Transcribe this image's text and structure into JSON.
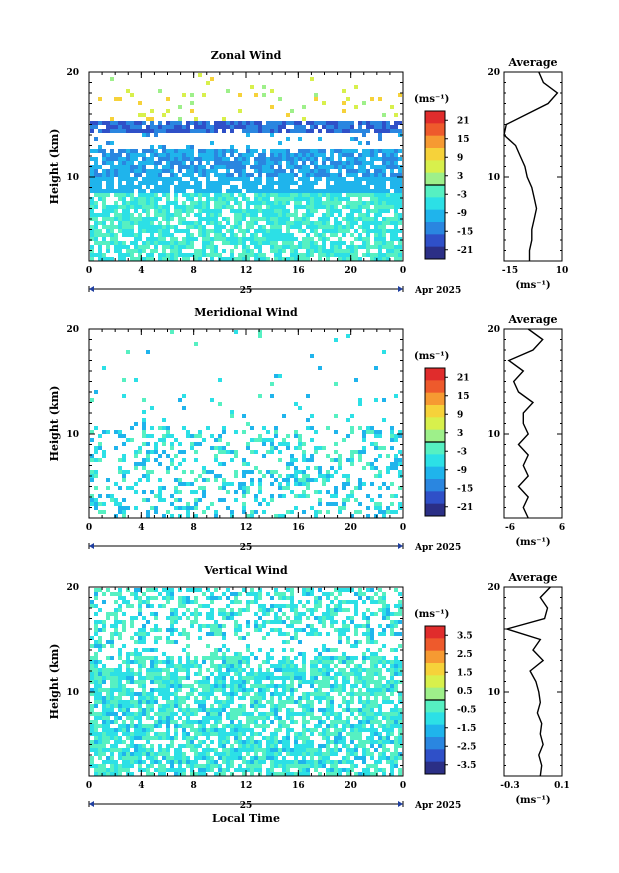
{
  "page": {
    "date_label": "Apr 2025",
    "xlabel": "Local Time"
  },
  "colors": {
    "zero_line": "#000000",
    "frame": "#000000",
    "colormap": [
      "#2b2f86",
      "#2f50c8",
      "#2a86e0",
      "#1fb4ec",
      "#2ce0e6",
      "#56f0c2",
      "#9ef08a",
      "#d8f04c",
      "#f6d23a",
      "#f69a32",
      "#ee5a2c",
      "#e02c2c"
    ]
  },
  "chart_data": [
    {
      "type": "heatmap",
      "title": "Zonal Wind",
      "ylabel": "Height (km)",
      "ylim": [
        2,
        20
      ],
      "xlim": [
        0,
        24
      ],
      "x_ticks": [
        "0",
        "4",
        "8",
        "12",
        "16",
        "20",
        "0"
      ],
      "y_ticks": [
        "20",
        "10"
      ],
      "day_label": "25",
      "colorbar": {
        "unit": "(ms⁻¹)",
        "range": [
          -24,
          24
        ],
        "ticks": [
          "21",
          "15",
          "9",
          "3",
          "-3",
          "-9",
          "-15",
          "-21"
        ]
      },
      "profile": {
        "title": "Average",
        "xlabel": "(ms⁻¹)",
        "xlim": [
          -15,
          10
        ],
        "x_ticks": [
          "-15",
          "10"
        ],
        "y_ticks": [
          "20",
          "10"
        ],
        "heights": [
          2,
          3,
          4,
          5,
          6,
          7,
          8,
          9,
          10,
          11,
          12,
          13,
          14,
          15,
          16,
          17,
          18,
          19,
          20
        ],
        "values": [
          -4,
          -4,
          -3,
          -3,
          -2,
          -1,
          -2,
          -3,
          -5,
          -6,
          -8,
          -10,
          -15,
          -14,
          -5,
          4,
          8,
          2,
          0
        ]
      }
    },
    {
      "type": "heatmap",
      "title": "Meridional Wind",
      "ylabel": "Height (km)",
      "ylim": [
        2,
        20
      ],
      "xlim": [
        0,
        24
      ],
      "x_ticks": [
        "0",
        "4",
        "8",
        "12",
        "16",
        "20",
        "0"
      ],
      "y_ticks": [
        "20",
        "10"
      ],
      "day_label": "25",
      "colorbar": {
        "unit": "(ms⁻¹)",
        "range": [
          -24,
          24
        ],
        "ticks": [
          "21",
          "15",
          "9",
          "3",
          "-3",
          "-9",
          "-15",
          "-21"
        ]
      },
      "profile": {
        "title": "Average",
        "xlabel": "(ms⁻¹)",
        "xlim": [
          -6,
          6
        ],
        "x_ticks": [
          "-6",
          "6"
        ],
        "y_ticks": [
          "20",
          "10"
        ],
        "heights": [
          2,
          3,
          4,
          5,
          6,
          7,
          8,
          9,
          10,
          11,
          12,
          13,
          14,
          15,
          16,
          17,
          18,
          19,
          20
        ],
        "values": [
          -1,
          -2,
          -1,
          -3,
          -1,
          -2,
          -1,
          -3,
          -1,
          -2,
          -2,
          0,
          -3,
          -4,
          -2,
          -5,
          0,
          2,
          -1
        ]
      }
    },
    {
      "type": "heatmap",
      "title": "Vertical Wind",
      "ylabel": "Height (km)",
      "ylim": [
        2,
        20
      ],
      "xlim": [
        0,
        24
      ],
      "x_ticks": [
        "0",
        "4",
        "8",
        "12",
        "16",
        "20",
        "0"
      ],
      "y_ticks": [
        "20",
        "10"
      ],
      "day_label": "25",
      "colorbar": {
        "unit": "(ms⁻¹)",
        "range": [
          -4,
          4
        ],
        "ticks": [
          "3.5",
          "2.5",
          "1.5",
          "0.5",
          "-0.5",
          "-1.5",
          "-2.5",
          "-3.5"
        ]
      },
      "profile": {
        "title": "Average",
        "xlabel": "(ms⁻¹)",
        "xlim": [
          -0.3,
          0.1
        ],
        "x_ticks": [
          "-0.3",
          "0.1"
        ],
        "y_ticks": [
          "20",
          "10"
        ],
        "heights": [
          2,
          3,
          4,
          5,
          6,
          7,
          8,
          9,
          10,
          11,
          12,
          13,
          14,
          15,
          16,
          17,
          18,
          19,
          20
        ],
        "values": [
          -0.05,
          -0.04,
          -0.06,
          -0.03,
          -0.05,
          -0.04,
          -0.07,
          -0.05,
          -0.06,
          -0.08,
          -0.12,
          -0.03,
          -0.1,
          -0.05,
          -0.28,
          -0.02,
          0.0,
          -0.05,
          0.02
        ]
      }
    }
  ]
}
